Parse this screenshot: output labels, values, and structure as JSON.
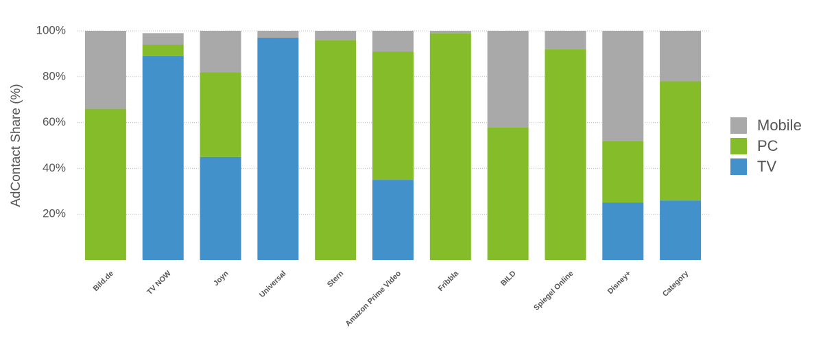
{
  "chart_data": {
    "type": "stacked-bar",
    "y_label": "AdContact Share (%)",
    "categories": [
      "Bild.de",
      "TV NOW",
      "Joyn",
      "Universal",
      "Stern",
      "Amazon Prime Video",
      "Fribbla",
      "BILD",
      "Spiegel Online",
      "Disney+",
      "Category"
    ],
    "series": [
      {
        "name": "TV",
        "color": "#4391cb",
        "values": [
          0,
          89,
          45,
          97,
          0,
          35,
          0,
          0,
          0,
          25,
          26
        ]
      },
      {
        "name": "PC",
        "color": "#84bd29",
        "values": [
          66,
          5,
          37,
          0,
          96,
          56,
          99,
          58,
          92,
          27,
          52
        ]
      },
      {
        "name": "Mobile",
        "color": "#a9a9a9",
        "values": [
          34,
          5,
          18,
          3,
          4,
          9,
          1,
          42,
          8,
          48,
          22
        ]
      }
    ],
    "ylim": [
      0,
      100
    ],
    "yticks": [
      {
        "value": 20,
        "label": "20%"
      },
      {
        "value": 40,
        "label": "40%"
      },
      {
        "value": 60,
        "label": "60%"
      },
      {
        "value": 80,
        "label": "80%"
      },
      {
        "value": 100,
        "label": "100%"
      }
    ],
    "grid": true,
    "legend": "right"
  }
}
